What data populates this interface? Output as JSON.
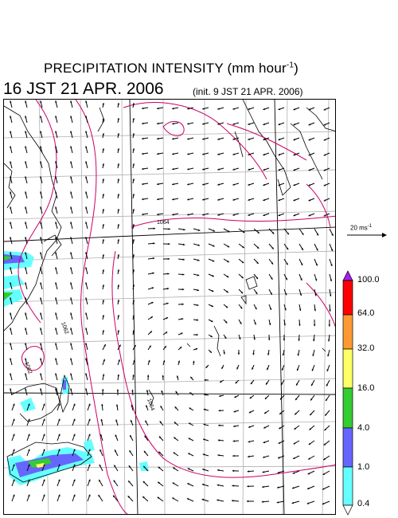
{
  "header": {
    "title_main": "PRECIPITATION INTENSITY (mm hour",
    "title_exp": "-1",
    "title_close": ")",
    "valid_time": "16 JST 21 APR. 2006",
    "init_time": "(init. 9 JST 21 APR. 2006)"
  },
  "isobar_labels": [
    "1064",
    "1062",
    "1062",
    "1064"
  ],
  "reference_vector": {
    "label": "20 ms",
    "exp": "-1"
  },
  "colorbar": {
    "levels": [
      "100.0",
      "64.0",
      "32.0",
      "16.0",
      "4.0",
      "1.0",
      "0.4"
    ],
    "colors": [
      "#a020f0",
      "#ff0000",
      "#ff9933",
      "#ffff66",
      "#33cc33",
      "#6666ff",
      "#66ffff",
      "#ffffff"
    ]
  },
  "colors": {
    "isobar": "#cc0066",
    "coast": "#000000",
    "grid": "#b0b0b0",
    "arrow": "#000000"
  }
}
